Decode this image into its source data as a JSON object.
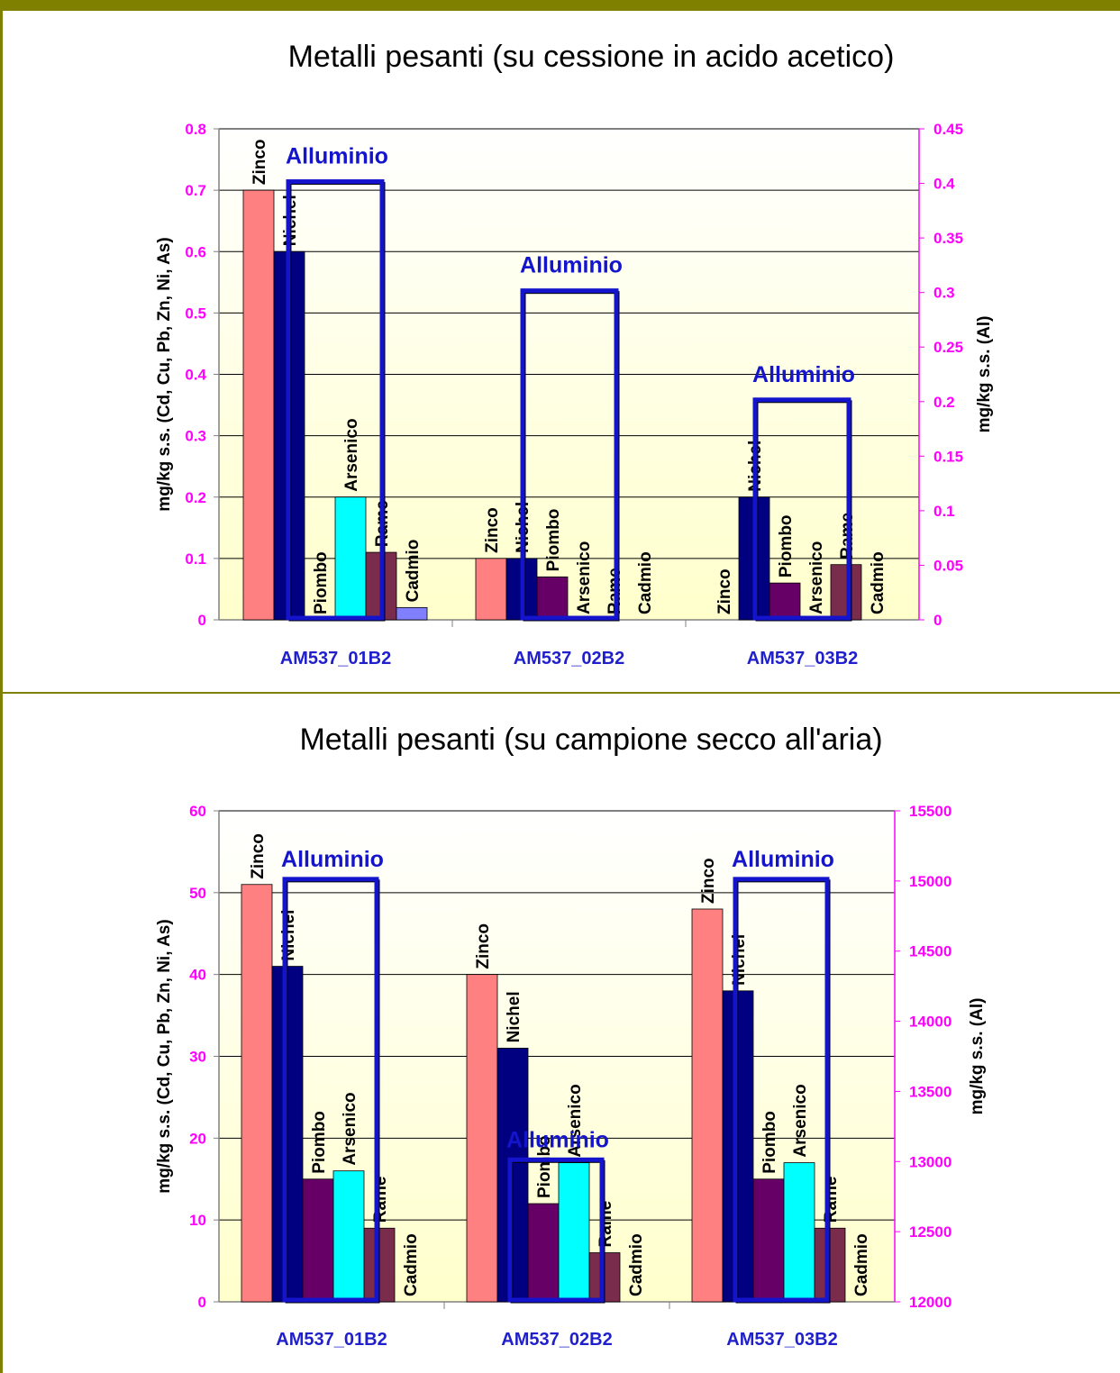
{
  "colors": {
    "frame": "#808000",
    "tick_label": "#ff00ff",
    "category_label": "#1f1fcc",
    "alluminio": "#1414cc",
    "plot_bg_top": "#ffffff",
    "plot_bg_bottom": "#ffffcc",
    "gridline": "#000000",
    "Zinco": "#ff8080",
    "Nichel": "#000080",
    "Piombo": "#660066",
    "Arsenico": "#00ffff",
    "Rame": "#7a2c4c",
    "Cadmio": "#8080ff"
  },
  "chart_data": [
    {
      "type": "bar",
      "title": "Metalli pesanti (su cessione in acido acetico)",
      "ylabel": "mg/kg s.s. (Cd, Cu, Pb, Zn, Ni, As)",
      "y2label": "mg/kg s.s. (Al)",
      "ylim": [
        0,
        0.8
      ],
      "yticks": [
        "0",
        "0.1",
        "0.2",
        "0.3",
        "0.4",
        "0.5",
        "0.6",
        "0.7",
        "0.8"
      ],
      "y2lim": [
        0,
        0.45
      ],
      "y2ticks": [
        "0",
        "0.05",
        "0.1",
        "0.15",
        "0.2",
        "0.25",
        "0.3",
        "0.35",
        "0.4",
        "0.45"
      ],
      "categories": [
        "AM537_01B2",
        "AM537_02B2",
        "AM537_03B2"
      ],
      "series": [
        {
          "name": "Zinco",
          "values": [
            0.7,
            0.1,
            0
          ]
        },
        {
          "name": "Nichel",
          "values": [
            0.6,
            0.1,
            0.2
          ]
        },
        {
          "name": "Piombo",
          "values": [
            0,
            0.07,
            0.06
          ]
        },
        {
          "name": "Arsenico",
          "values": [
            0.2,
            0,
            0
          ]
        },
        {
          "name": "Rame",
          "values": [
            0.11,
            0,
            0.09
          ]
        },
        {
          "name": "Cadmio",
          "values": [
            0.02,
            0,
            0
          ]
        }
      ],
      "secondary_series": {
        "name": "Alluminio",
        "values": [
          0.4,
          0.3,
          0.2
        ]
      },
      "grid": true,
      "legend": "data labels on bars"
    },
    {
      "type": "bar",
      "title": "Metalli pesanti (su campione secco all'aria)",
      "ylabel": "mg/kg s.s. (Cd, Cu, Pb, Zn, Ni, As)",
      "y2label": "mg/kg s.s. (Al)",
      "ylim": [
        0,
        60
      ],
      "yticks": [
        "0",
        "10",
        "20",
        "30",
        "40",
        "50",
        "60"
      ],
      "y2lim": [
        12000,
        15500
      ],
      "y2ticks": [
        "12000",
        "12500",
        "13000",
        "13500",
        "14000",
        "14500",
        "15000",
        "15500"
      ],
      "categories": [
        "AM537_01B2",
        "AM537_02B2",
        "AM537_03B2"
      ],
      "series": [
        {
          "name": "Zinco",
          "values": [
            51,
            40,
            48
          ]
        },
        {
          "name": "Nichel",
          "values": [
            41,
            31,
            38
          ]
        },
        {
          "name": "Piombo",
          "values": [
            15,
            12,
            15
          ]
        },
        {
          "name": "Arsenico",
          "values": [
            16,
            17,
            17
          ]
        },
        {
          "name": "Rame",
          "values": [
            9,
            6,
            9
          ]
        },
        {
          "name": "Cadmio",
          "values": [
            0,
            0,
            0
          ]
        }
      ],
      "secondary_series": {
        "name": "Alluminio",
        "values": [
          15000,
          13000,
          15000
        ]
      },
      "grid": true,
      "legend": "data labels on bars"
    }
  ]
}
